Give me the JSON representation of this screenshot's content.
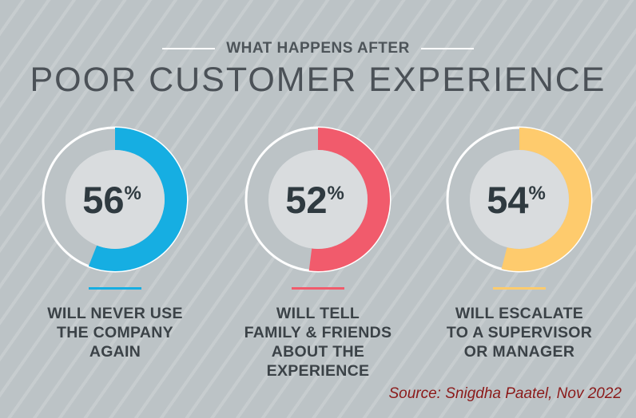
{
  "header": {
    "subtitle": "WHAT HAPPENS AFTER",
    "title": "POOR CUSTOMER EXPERIENCE"
  },
  "chart_data": {
    "type": "pie",
    "title": "WHAT HAPPENS AFTER POOR CUSTOMER EXPERIENCE",
    "series": [
      {
        "name": "WILL NEVER USE THE COMPANY AGAIN",
        "value": 56,
        "display": "56",
        "color": "#16aee2",
        "caption_lines": [
          "WILL NEVER USE",
          "THE COMPANY",
          "AGAIN"
        ]
      },
      {
        "name": "WILL TELL FAMILY & FRIENDS ABOUT THE EXPERIENCE",
        "value": 52,
        "display": "52",
        "color": "#f15b6c",
        "caption_lines": [
          "WILL TELL",
          "FAMILY & FRIENDS",
          "ABOUT THE",
          "EXPERIENCE"
        ]
      },
      {
        "name": "WILL ESCALATE TO A SUPERVISOR OR MANAGER",
        "value": 54,
        "display": "54",
        "color": "#fecb6d",
        "caption_lines": [
          "WILL ESCALATE",
          "TO A SUPERVISOR",
          "OR MANAGER"
        ]
      }
    ],
    "unit": "%"
  },
  "footer": {
    "source": "Source:  Snigdha Paatel, Nov 2022"
  }
}
